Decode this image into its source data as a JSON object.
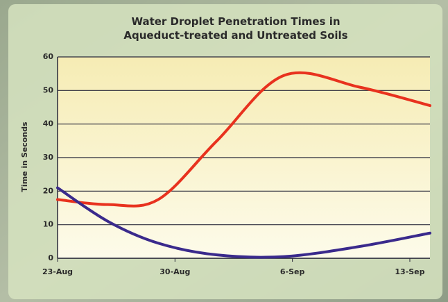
{
  "chart_data": {
    "type": "line",
    "title": "Water Droplet Penetration Times in Aqueduct-treated and Untreated Soils",
    "ylabel": "Time in Seconds",
    "x": [
      0,
      3,
      6,
      9.5,
      13.5,
      18,
      22.2
    ],
    "xlim": [
      0,
      22.2
    ],
    "xticks": [
      {
        "value": 0,
        "label": "23-Aug"
      },
      {
        "value": 7,
        "label": "30-Aug"
      },
      {
        "value": 14,
        "label": "6-Sep"
      },
      {
        "value": 21,
        "label": "13-Sep"
      }
    ],
    "ylim": [
      0,
      60
    ],
    "yticks": [
      0,
      10,
      20,
      30,
      40,
      50,
      60
    ],
    "grid": true,
    "series": [
      {
        "color": "#e8321e",
        "values": [
          17.5,
          16,
          17.5,
          35,
          54.5,
          51,
          45.5
        ]
      },
      {
        "color": "#3a2a8c",
        "values": [
          21,
          11,
          4.5,
          1,
          0.5,
          3.5,
          7.5
        ]
      }
    ]
  }
}
